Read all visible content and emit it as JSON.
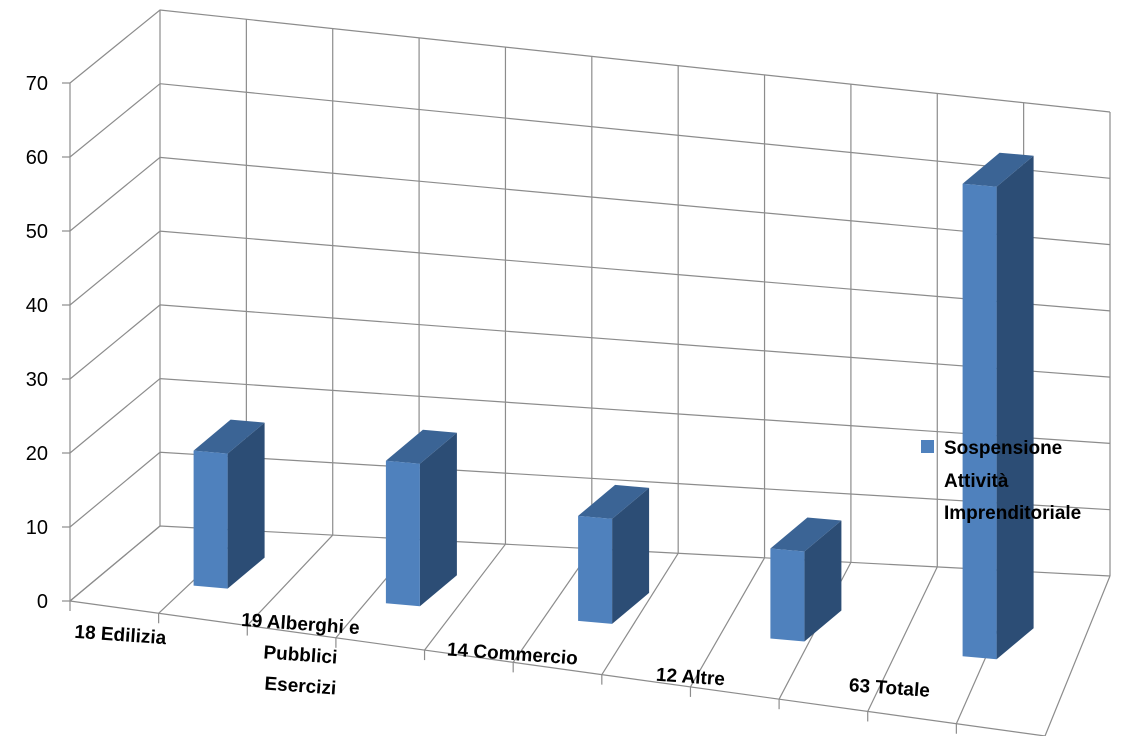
{
  "chart_data": {
    "type": "bar",
    "view": "3d-column",
    "categories": [
      "18 Edilizia",
      "19 Alberghi e Pubblici Esercizi",
      "14  Commercio",
      "12  Altre",
      "63  Totale"
    ],
    "series": [
      {
        "name": "Sospensione Attività Imprenditoriale",
        "values": [
          18,
          19,
          14,
          12,
          63
        ]
      }
    ],
    "yticks": [
      "0",
      "10",
      "20",
      "30",
      "40",
      "50",
      "60",
      "70"
    ],
    "ylim": [
      0,
      70
    ],
    "grid": true,
    "legend": "right",
    "legend_lines": [
      "Sospensione",
      "Attività",
      "Imprenditoriale"
    ],
    "category_label_lines": [
      [
        "18 Edilizia"
      ],
      [
        "19 Alberghi e",
        "Pubblici",
        "Esercizi"
      ],
      [
        "14  Commercio"
      ],
      [
        "12  Altre"
      ],
      [
        "63  Totale"
      ]
    ],
    "colors": {
      "bar_front": "#4F81BD",
      "bar_side": "#2C4D75",
      "bar_top": "#3B6495",
      "grid": "#8C8C8C",
      "floor": "#8C8C8C"
    }
  }
}
